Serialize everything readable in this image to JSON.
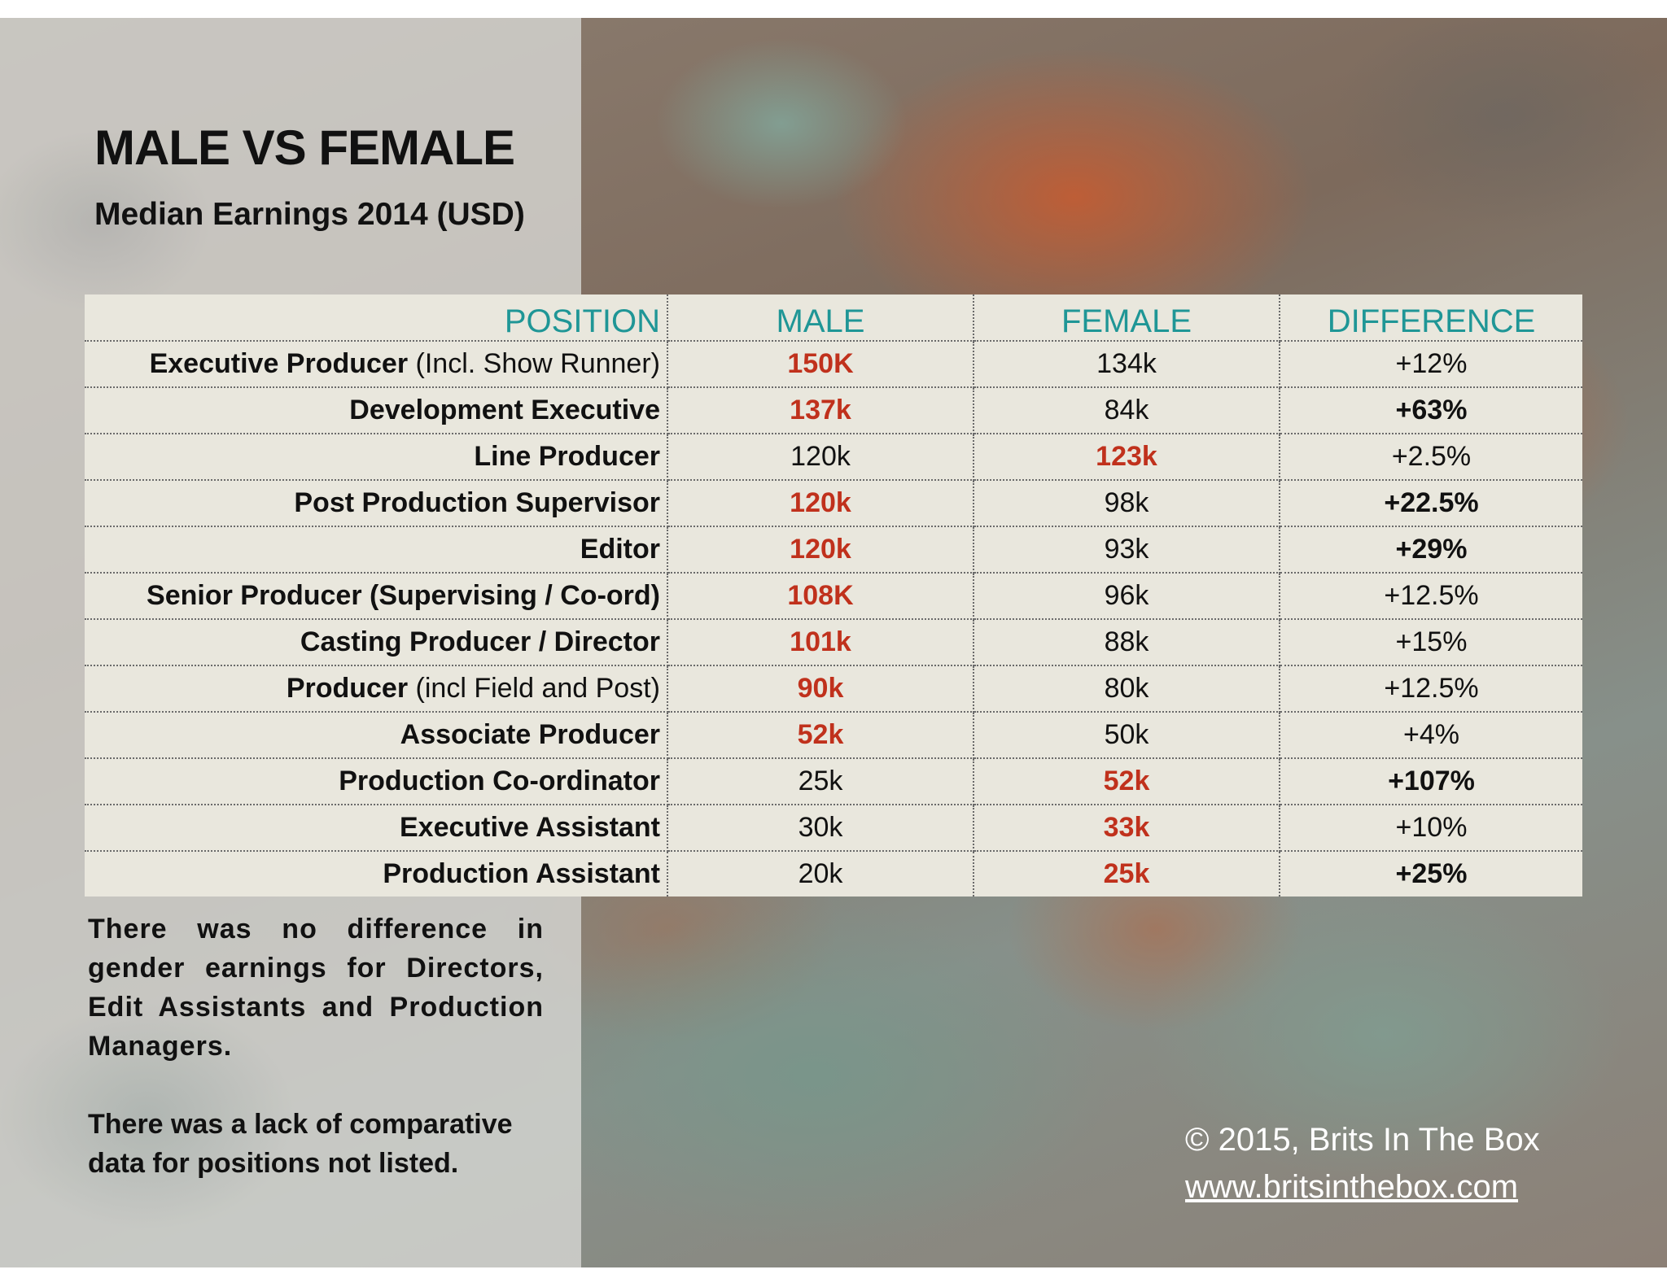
{
  "header": {
    "title": "MALE VS FEMALE",
    "subtitle": "Median Earnings 2014 (USD)"
  },
  "table": {
    "columns": [
      "POSITION",
      "MALE",
      "FEMALE",
      "DIFFERENCE"
    ]
  },
  "chart_data": {
    "type": "table",
    "title": "MALE VS FEMALE",
    "subtitle": "Median Earnings 2014 (USD)",
    "columns": [
      "POSITION",
      "MALE",
      "FEMALE",
      "DIFFERENCE"
    ],
    "highlight_color": "#c0311c",
    "header_color": "#1f9696",
    "rows": [
      {
        "position": "Executive  Producer",
        "note": "(Incl. Show Runner)",
        "male": "150K",
        "female": "134k",
        "difference": "+12%",
        "higher": "male",
        "diff_bold": false
      },
      {
        "position": "Development Executive",
        "note": "",
        "male": "137k",
        "female": "84k",
        "difference": "+63%",
        "higher": "male",
        "diff_bold": true
      },
      {
        "position": "Line Producer",
        "note": "",
        "male": "120k",
        "female": "123k",
        "difference": "+2.5%",
        "higher": "female",
        "diff_bold": false
      },
      {
        "position": "Post Production Supervisor",
        "note": "",
        "male": "120k",
        "female": "98k",
        "difference": "+22.5%",
        "higher": "male",
        "diff_bold": true
      },
      {
        "position": "Editor",
        "note": "",
        "male": "120k",
        "female": "93k",
        "difference": "+29%",
        "higher": "male",
        "diff_bold": true
      },
      {
        "position": "Senior Producer (Supervising / Co-ord)",
        "note": "",
        "male": "108K",
        "female": "96k",
        "difference": "+12.5%",
        "higher": "male",
        "diff_bold": false
      },
      {
        "position": "Casting Producer / Director",
        "note": "",
        "male": "101k",
        "female": "88k",
        "difference": "+15%",
        "higher": "male",
        "diff_bold": false
      },
      {
        "position": "Producer",
        "note": "(incl Field and Post)",
        "male": "90k",
        "female": "80k",
        "difference": "+12.5%",
        "higher": "male",
        "diff_bold": false
      },
      {
        "position": "Associate Producer",
        "note": "",
        "male": "52k",
        "female": "50k",
        "difference": "+4%",
        "higher": "male",
        "diff_bold": false
      },
      {
        "position": "Production  Co-ordinator",
        "note": "",
        "male": "25k",
        "female": "52k",
        "difference": "+107%",
        "higher": "female",
        "diff_bold": true
      },
      {
        "position": "Executive Assistant",
        "note": "",
        "male": "30k",
        "female": "33k",
        "difference": "+10%",
        "higher": "female",
        "diff_bold": false
      },
      {
        "position": "Production Assistant",
        "note": "",
        "male": "20k",
        "female": "25k",
        "difference": "+25%",
        "higher": "female",
        "diff_bold": true
      }
    ]
  },
  "notes": [
    "There was no difference in gender earnings for Directors, Edit Assistants and Production Managers.",
    "There was a lack of comparative data for positions not listed."
  ],
  "credit": {
    "copyright": "© 2015, Brits In The Box",
    "url": "www.britsinthebox.com"
  }
}
